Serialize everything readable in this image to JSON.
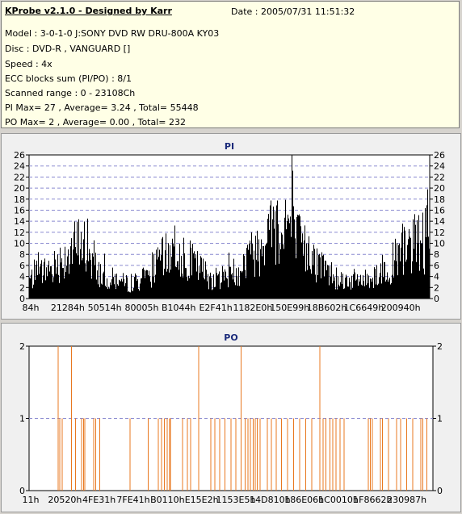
{
  "info": {
    "title": "KProbe v2.1.0 - Designed by Karr",
    "date": "Date : 2005/07/31 11:51:32",
    "lines": [
      "Model : 3-0-1-0 J:SONY    DVD RW DRU-800A  KY03",
      "Disc : DVD-R , VANGUARD []",
      "Speed : 4x",
      "ECC blocks sum (PI/PO) : 8/1",
      "Scanned range : 0 - 23108Ch",
      "PI Max= 27 , Average= 3.24 , Total= 55448",
      "PO Max= 2 , Average= 0.00 , Total= 232"
    ]
  },
  "chart_data": [
    {
      "type": "bar",
      "title": "PI",
      "ylim": [
        0,
        26
      ],
      "yticks": [
        0,
        2,
        4,
        6,
        8,
        10,
        12,
        14,
        16,
        18,
        20,
        22,
        24,
        26
      ],
      "xtick_labels": [
        "84h",
        "21284h",
        "50514h",
        "80005h",
        "B1044h",
        "E2F41h",
        "1182E0h",
        "150E99h",
        "18B602h",
        "1C6649h",
        "200940h"
      ],
      "color": "#000000",
      "grid": true,
      "profile": [
        [
          0,
          4
        ],
        [
          0.06,
          7
        ],
        [
          0.13,
          12
        ],
        [
          0.18,
          5
        ],
        [
          0.25,
          3
        ],
        [
          0.3,
          5
        ],
        [
          0.36,
          11
        ],
        [
          0.4,
          8
        ],
        [
          0.46,
          4
        ],
        [
          0.52,
          6
        ],
        [
          0.6,
          14
        ],
        [
          0.64,
          17
        ],
        [
          0.67,
          12
        ],
        [
          0.72,
          7
        ],
        [
          0.78,
          4
        ],
        [
          0.84,
          4
        ],
        [
          0.9,
          7
        ],
        [
          0.95,
          11
        ],
        [
          1.0,
          13
        ]
      ],
      "spike": {
        "x": 0.655,
        "value": 27
      }
    },
    {
      "type": "bar",
      "title": "PO",
      "ylim": [
        0,
        2
      ],
      "yticks": [
        0,
        1,
        2
      ],
      "xtick_labels": [
        "11h",
        "20520h",
        "4FE31h",
        "7FE41h",
        "B0110h",
        "E15E2h",
        "1153E5h",
        "14D810h",
        "186E06h",
        "1C0010h",
        "1F8662h",
        "230987h"
      ],
      "color": "#e87820",
      "grid": true,
      "events": [
        [
          0.072,
          2
        ],
        [
          0.076,
          1
        ],
        [
          0.082,
          1
        ],
        [
          0.105,
          2
        ],
        [
          0.115,
          1
        ],
        [
          0.13,
          1
        ],
        [
          0.135,
          1
        ],
        [
          0.138,
          1
        ],
        [
          0.16,
          1
        ],
        [
          0.165,
          1
        ],
        [
          0.175,
          1
        ],
        [
          0.25,
          1
        ],
        [
          0.295,
          1
        ],
        [
          0.32,
          1
        ],
        [
          0.328,
          1
        ],
        [
          0.335,
          1
        ],
        [
          0.342,
          1
        ],
        [
          0.348,
          1
        ],
        [
          0.35,
          1
        ],
        [
          0.38,
          1
        ],
        [
          0.392,
          1
        ],
        [
          0.4,
          1
        ],
        [
          0.42,
          2
        ],
        [
          0.45,
          1
        ],
        [
          0.46,
          1
        ],
        [
          0.472,
          1
        ],
        [
          0.485,
          1
        ],
        [
          0.5,
          1
        ],
        [
          0.512,
          1
        ],
        [
          0.525,
          2
        ],
        [
          0.535,
          1
        ],
        [
          0.542,
          1
        ],
        [
          0.548,
          1
        ],
        [
          0.555,
          1
        ],
        [
          0.56,
          1
        ],
        [
          0.565,
          1
        ],
        [
          0.572,
          1
        ],
        [
          0.59,
          1
        ],
        [
          0.6,
          1
        ],
        [
          0.612,
          1
        ],
        [
          0.625,
          1
        ],
        [
          0.64,
          1
        ],
        [
          0.655,
          1
        ],
        [
          0.67,
          1
        ],
        [
          0.685,
          1
        ],
        [
          0.7,
          1
        ],
        [
          0.72,
          2
        ],
        [
          0.728,
          1
        ],
        [
          0.735,
          1
        ],
        [
          0.745,
          1
        ],
        [
          0.752,
          1
        ],
        [
          0.76,
          1
        ],
        [
          0.77,
          1
        ],
        [
          0.78,
          1
        ],
        [
          0.84,
          1
        ],
        [
          0.845,
          1
        ],
        [
          0.85,
          1
        ],
        [
          0.87,
          1
        ],
        [
          0.875,
          1
        ],
        [
          0.89,
          1
        ],
        [
          0.91,
          1
        ],
        [
          0.92,
          1
        ],
        [
          0.935,
          1
        ],
        [
          0.95,
          1
        ],
        [
          0.97,
          1
        ],
        [
          0.975,
          1
        ],
        [
          0.985,
          1
        ]
      ]
    }
  ]
}
